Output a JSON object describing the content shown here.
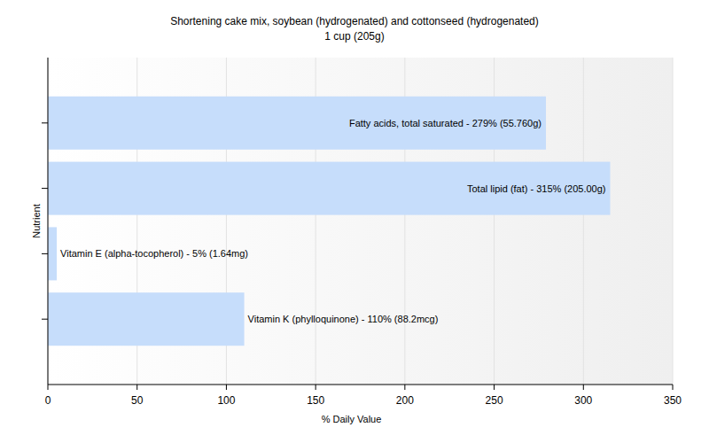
{
  "chart_data": {
    "type": "bar",
    "orientation": "horizontal",
    "title": "Shortening cake mix, soybean (hydrogenated) and cottonseed (hydrogenated)",
    "subtitle": "1 cup (205g)",
    "x_label": "% Daily Value",
    "y_label": "Nutrient",
    "categories": [
      null,
      null,
      null,
      null
    ],
    "values": [
      279,
      315,
      5,
      110
    ],
    "value_labels": [
      "Fatty acids, total saturated - 279% (55.760g)",
      "Total lipid (fat) - 315% (205.00g)",
      "Vitamin E (alpha-tocopherol) - 5% (1.64mg)",
      "Vitamin K (phylloquinone) - 110% (88.2mcg)"
    ],
    "data_labels": true,
    "color": "#c6ddfb",
    "xlim": [
      0,
      350
    ],
    "xticks": [
      0,
      50,
      100,
      150,
      200,
      250,
      300,
      350
    ],
    "grid": true
  }
}
